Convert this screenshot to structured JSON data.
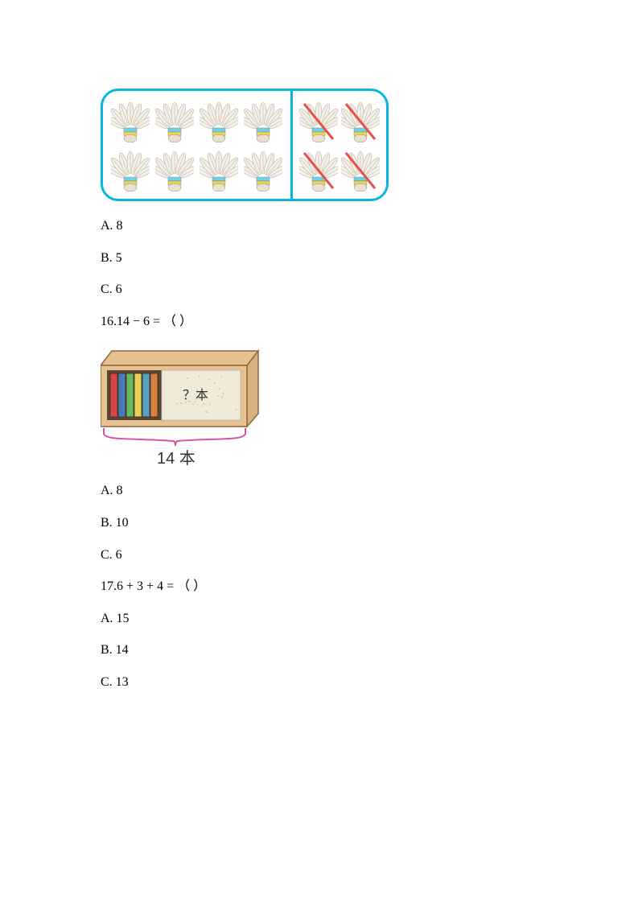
{
  "q15": {
    "shuttlecock": {
      "border_color": "#0bb5e0",
      "feather_color": "#f5f1e8",
      "feather_line": "#b8b0a0",
      "band_colors": [
        "#6dd3e8",
        "#f5d547"
      ],
      "cork_color": "#e8e0d0",
      "cross_color": "#e8504a",
      "left_count": 8,
      "right_count": 4
    },
    "options": {
      "a": "A. 8",
      "b": "B. 5",
      "c": "C. 6"
    }
  },
  "q16": {
    "question": "16.14 − 6 = （  ）",
    "bookshelf": {
      "box_fill": "#e8c190",
      "box_stroke": "#8b6840",
      "inner_fill": "#5a4530",
      "book_colors": [
        "#d94545",
        "#4a7ab8",
        "#6bb85a",
        "#e8d050",
        "#5aa0c0",
        "#d88040"
      ],
      "cover_fill": "#f0ead8",
      "cover_dots": "#c8c0a8",
      "hidden_label": "？本",
      "brace_color": "#d456a8",
      "total_label": "14 本",
      "total_fontsize": 20
    },
    "options": {
      "a": "A. 8",
      "b": "B. 10",
      "c": "C. 6"
    }
  },
  "q17": {
    "question": "17.6 + 3 + 4 = （  ）",
    "options": {
      "a": "A. 15",
      "b": "B. 14",
      "c": "C. 13"
    }
  }
}
